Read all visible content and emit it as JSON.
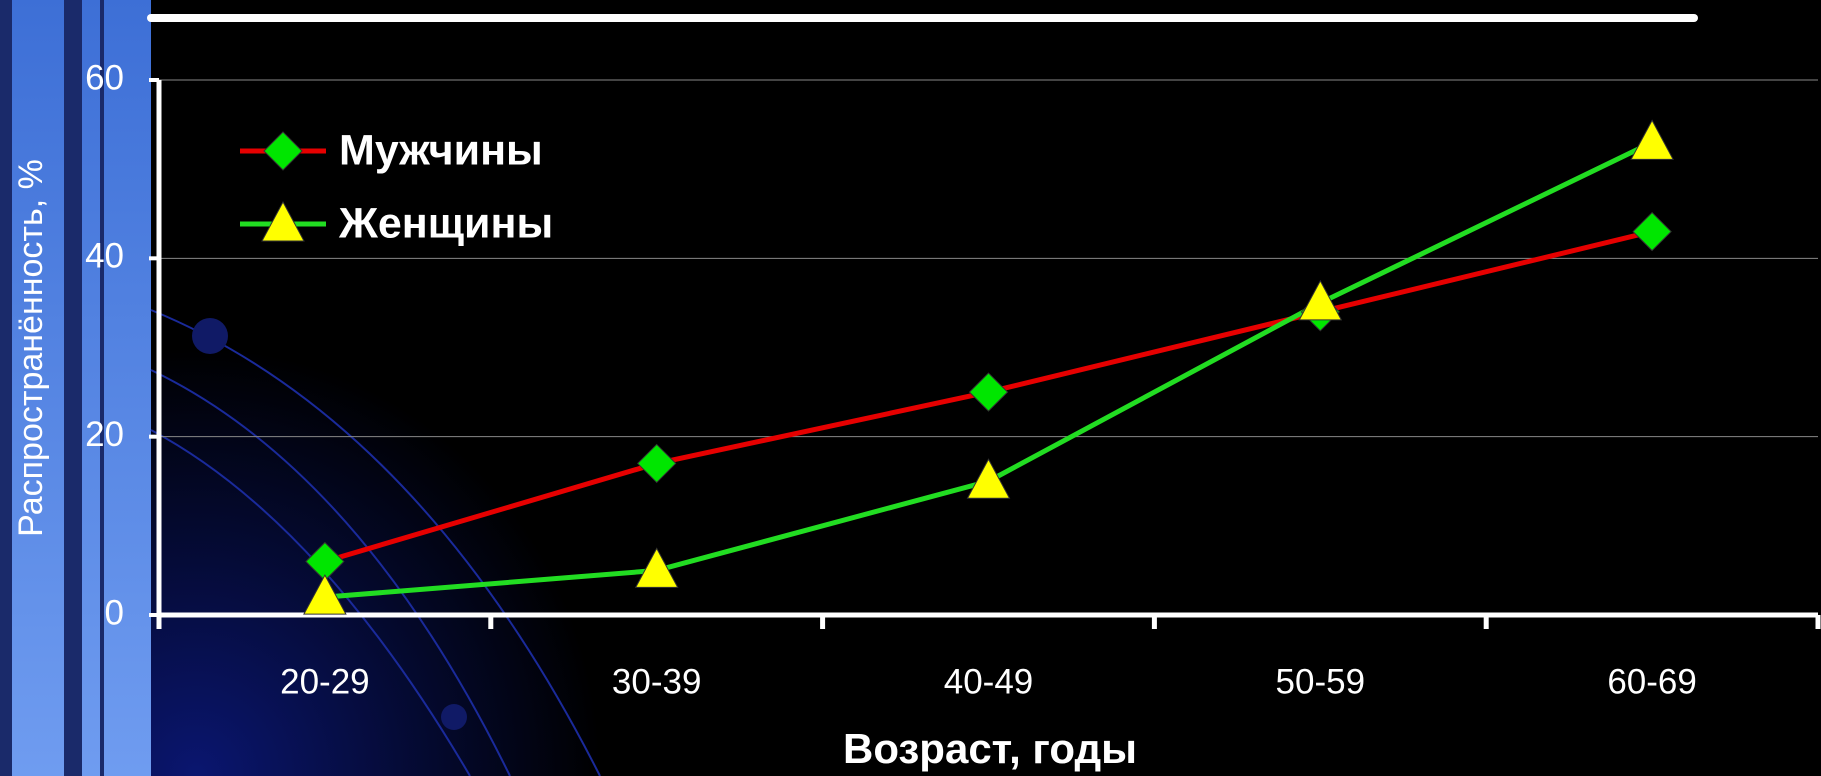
{
  "chart_data": {
    "type": "line",
    "x_label": "Возраст, годы",
    "y_label": "Распространённость, %",
    "categories": [
      "20-29",
      "30-39",
      "40-49",
      "50-59",
      "60-69"
    ],
    "series": [
      {
        "name": "Мужчины",
        "color": "#e60000",
        "marker_color": "#00e600",
        "marker": "diamond",
        "values": [
          6,
          17,
          25,
          34,
          43
        ]
      },
      {
        "name": "Женщины",
        "color": "#22dd22",
        "marker_color": "#ffff00",
        "marker": "triangle",
        "values": [
          2,
          5,
          15,
          35,
          53
        ]
      }
    ],
    "ylim": [
      0,
      60
    ],
    "yticks": [
      0,
      20,
      40,
      60
    ],
    "grid": true,
    "legend": "top-left"
  }
}
